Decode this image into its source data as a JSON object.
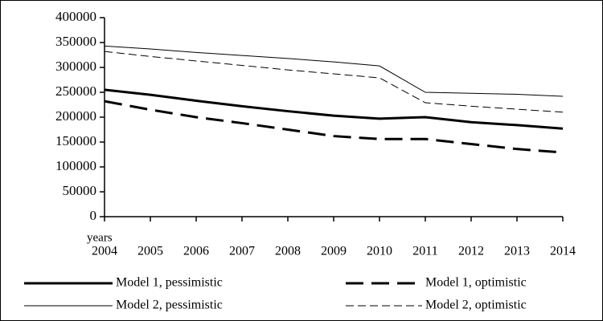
{
  "chart_data": {
    "type": "line",
    "xlabel": "years",
    "x": [
      2004,
      2005,
      2006,
      2007,
      2008,
      2009,
      2010,
      2011,
      2012,
      2013,
      2014
    ],
    "xlim": [
      2004,
      2014
    ],
    "xticks": [
      2004,
      2005,
      2006,
      2007,
      2008,
      2009,
      2010,
      2011,
      2012,
      2013,
      2014
    ],
    "ylim": [
      0,
      400000
    ],
    "yticks": [
      0,
      50000,
      100000,
      150000,
      200000,
      250000,
      300000,
      350000,
      400000
    ],
    "grid": false,
    "series": [
      {
        "name": "Model 1, pessimistic",
        "color": "#000000",
        "line_width": 3,
        "dashed": false,
        "values": [
          255000,
          245000,
          233000,
          222000,
          212000,
          203000,
          197000,
          200000,
          190000,
          184000,
          177000
        ]
      },
      {
        "name": "Model 1, optimistic",
        "color": "#000000",
        "line_width": 3,
        "dashed": true,
        "values": [
          232000,
          215000,
          200000,
          188000,
          175000,
          162000,
          156000,
          156000,
          146000,
          136000,
          129000
        ]
      },
      {
        "name": "Model 2, pessimistic",
        "color": "#000000",
        "line_width": 1,
        "dashed": false,
        "values": [
          343000,
          337000,
          330000,
          324000,
          318000,
          311000,
          303000,
          250000,
          248000,
          246000,
          242000
        ]
      },
      {
        "name": "Model 2, optimistic",
        "color": "#000000",
        "line_width": 1,
        "dashed": true,
        "values": [
          332000,
          322000,
          313000,
          304000,
          295000,
          287000,
          279000,
          229000,
          222000,
          216000,
          210000
        ]
      }
    ]
  }
}
